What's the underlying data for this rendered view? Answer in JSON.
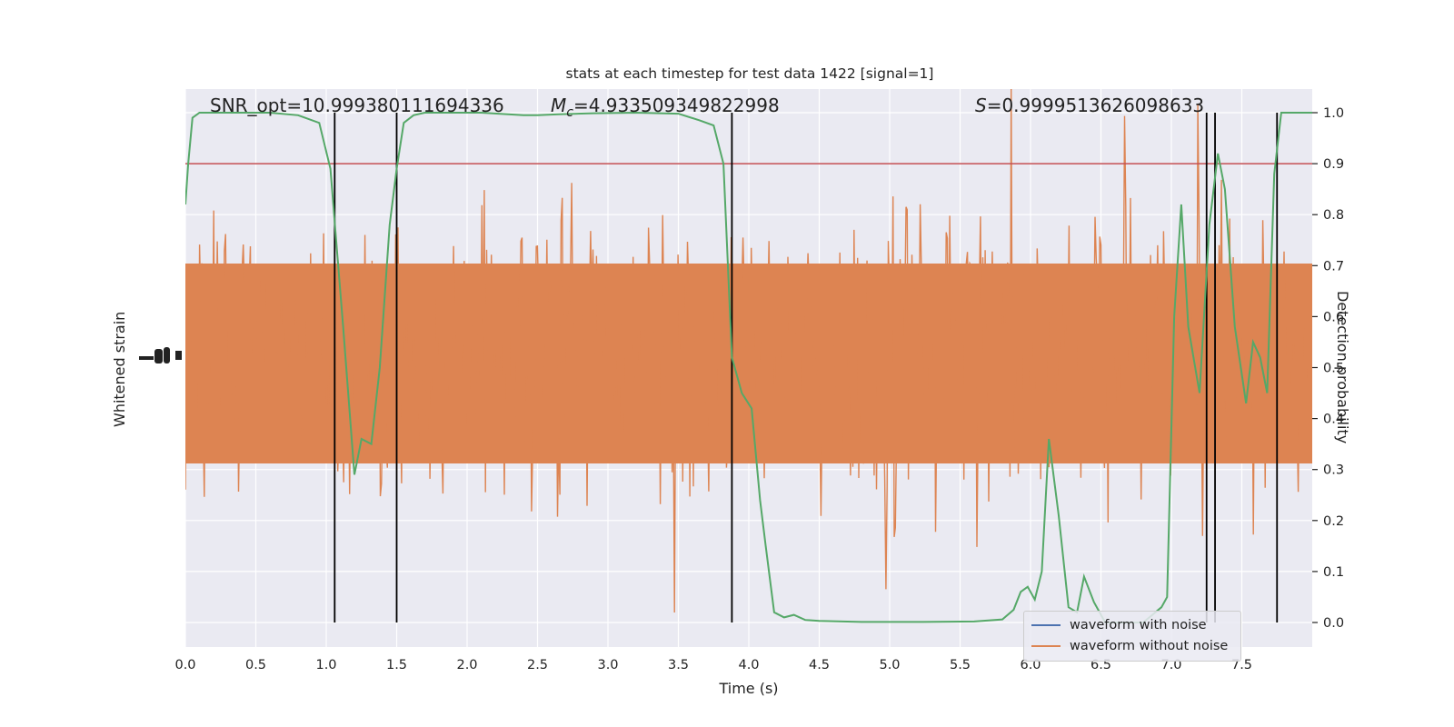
{
  "chart_data": {
    "type": "line",
    "title": "stats at each timestep for test data 1422 [signal=1]",
    "xlabel": "Time (s)",
    "ylabel_left": "Whitened strain",
    "ylabel_right": "Detection probability",
    "xlim": [
      0.0,
      8.0
    ],
    "y_right_lim": [
      -0.05,
      1.0
    ],
    "x_ticks": [
      "0.0",
      "0.5",
      "1.0",
      "1.5",
      "2.0",
      "2.5",
      "3.0",
      "3.5",
      "4.0",
      "4.5",
      "5.0",
      "5.5",
      "6.0",
      "6.5",
      "7.0",
      "7.5"
    ],
    "y_right_ticks": [
      "0.0",
      "0.1",
      "0.2",
      "0.3",
      "0.4",
      "0.5",
      "0.6",
      "0.7",
      "0.8",
      "0.9",
      "1.0"
    ],
    "annotations": {
      "snr_label": "SNR_opt=10.999380111694336",
      "mc_symbol": "M",
      "mc_subscript": "c",
      "mc_value": "=4.933509349822998",
      "s_symbol": "S",
      "s_value": "=0.9999513626098633"
    },
    "threshold": 0.9,
    "vertical_lines": [
      1.06,
      1.5,
      3.88,
      7.25,
      7.31,
      7.75
    ],
    "legend": [
      {
        "label": "waveform with noise",
        "color": "#4c72b0"
      },
      {
        "label": "waveform without noise",
        "color": "#dd8452"
      }
    ],
    "probability_series": {
      "name": "",
      "color": "#55a868",
      "x": [
        0.0,
        0.02,
        0.05,
        0.1,
        0.2,
        0.4,
        0.6,
        0.8,
        0.95,
        1.03,
        1.07,
        1.12,
        1.2,
        1.25,
        1.32,
        1.38,
        1.45,
        1.5,
        1.55,
        1.62,
        1.7,
        1.85,
        2.1,
        2.4,
        2.5,
        2.65,
        2.9,
        3.2,
        3.5,
        3.65,
        3.75,
        3.82,
        3.88,
        3.95,
        4.02,
        4.08,
        4.12,
        4.18,
        4.25,
        4.32,
        4.4,
        4.5,
        4.8,
        5.2,
        5.6,
        5.8,
        5.88,
        5.93,
        5.98,
        6.03,
        6.08,
        6.13,
        6.2,
        6.27,
        6.33,
        6.38,
        6.45,
        6.53,
        6.6,
        6.7,
        6.8,
        6.93,
        6.97,
        7.02,
        7.07,
        7.12,
        7.2,
        7.27,
        7.33,
        7.38,
        7.45,
        7.53,
        7.58,
        7.63,
        7.68,
        7.73,
        7.78,
        7.83,
        7.9,
        8.0
      ],
      "y": [
        0.82,
        0.9,
        0.99,
        1.0,
        1.0,
        1.0,
        1.0,
        0.995,
        0.98,
        0.89,
        0.75,
        0.58,
        0.29,
        0.36,
        0.35,
        0.5,
        0.78,
        0.89,
        0.98,
        0.995,
        1.0,
        1.0,
        1.0,
        0.995,
        0.995,
        0.997,
        0.999,
        1.0,
        0.998,
        0.985,
        0.975,
        0.9,
        0.52,
        0.45,
        0.42,
        0.24,
        0.15,
        0.02,
        0.01,
        0.015,
        0.005,
        0.003,
        0.001,
        0.001,
        0.002,
        0.006,
        0.025,
        0.06,
        0.07,
        0.045,
        0.1,
        0.36,
        0.21,
        0.03,
        0.02,
        0.09,
        0.04,
        0.0,
        0.0,
        0.0,
        0.0,
        0.03,
        0.05,
        0.6,
        0.82,
        0.58,
        0.45,
        0.78,
        0.92,
        0.85,
        0.58,
        0.43,
        0.55,
        0.52,
        0.45,
        0.88,
        1.0,
        1.0,
        1.0,
        1.0
      ]
    }
  }
}
